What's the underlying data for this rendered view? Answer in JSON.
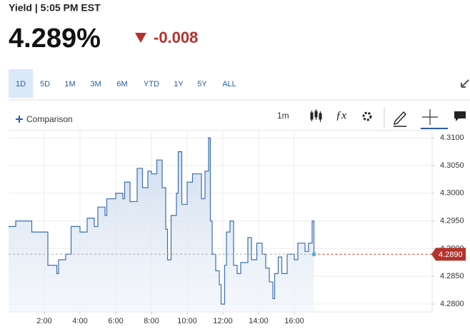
{
  "header": {
    "title": "Yield | 5:05 PM EST",
    "price": "4.289%",
    "change": "-0.008"
  },
  "ranges": [
    "1D",
    "5D",
    "1M",
    "3M",
    "6M",
    "YTD",
    "1Y",
    "5Y",
    "ALL"
  ],
  "toolbar": {
    "comparison": "Comparison",
    "interval": "1m"
  },
  "chart_data": {
    "type": "line",
    "x": [
      0,
      0.4,
      1.2,
      1.3,
      2.0,
      2.2,
      2.6,
      2.7,
      2.8,
      3.2,
      3.5,
      4.0,
      4.4,
      4.8,
      5.0,
      5.4,
      5.5,
      6.0,
      6.4,
      6.5,
      6.8,
      7.2,
      7.5,
      7.8,
      8.0,
      8.3,
      8.6,
      8.8,
      8.9,
      9.1,
      9.4,
      9.5,
      9.7,
      10.0,
      10.3,
      10.8,
      11.0,
      11.2,
      11.3,
      11.4,
      11.6,
      11.8,
      11.9,
      12.1,
      12.2,
      12.4,
      12.6,
      12.8,
      13.0,
      13.4,
      13.6,
      13.9,
      14.2,
      14.4,
      14.6,
      14.8,
      14.9,
      15.1,
      15.3,
      15.6,
      16.0,
      16.2,
      16.6,
      16.8,
      17.0,
      17.1
    ],
    "series": [
      {
        "color": "#3d6fb0",
        "values": [
          4.294,
          4.295,
          4.295,
          4.293,
          4.293,
          4.287,
          4.287,
          4.2855,
          4.288,
          4.289,
          4.294,
          4.293,
          4.2955,
          4.294,
          4.2975,
          4.296,
          4.299,
          4.3,
          4.299,
          4.302,
          4.2985,
          4.3045,
          4.301,
          4.304,
          4.3035,
          4.306,
          4.301,
          4.2935,
          4.288,
          4.296,
          4.3,
          4.3075,
          4.298,
          4.302,
          4.3035,
          4.299,
          4.304,
          4.31,
          4.295,
          4.289,
          4.286,
          4.2835,
          4.28,
          4.287,
          4.293,
          4.295,
          4.287,
          4.2855,
          4.2875,
          4.292,
          4.288,
          4.291,
          4.289,
          4.2865,
          4.284,
          4.281,
          4.2855,
          4.2885,
          4.2855,
          4.289,
          4.288,
          4.291,
          4.2895,
          4.291,
          4.295,
          4.289
        ]
      }
    ],
    "xlim": [
      0,
      23.7
    ],
    "ylim": [
      4.2786,
      4.3113
    ],
    "xticks": [
      {
        "value": 2,
        "label": "2:00"
      },
      {
        "value": 4,
        "label": "4:00"
      },
      {
        "value": 6,
        "label": "6:00"
      },
      {
        "value": 8,
        "label": "8:00"
      },
      {
        "value": 10,
        "label": "10:00"
      },
      {
        "value": 12,
        "label": "12:00"
      },
      {
        "value": 14,
        "label": "14:00"
      },
      {
        "value": 16,
        "label": "16:00"
      }
    ],
    "yticks": [
      {
        "value": 4.28,
        "label": "4.2800"
      },
      {
        "value": 4.285,
        "label": "4.2850"
      },
      {
        "value": 4.29,
        "label": "4.2900"
      },
      {
        "value": 4.295,
        "label": "4.2950"
      },
      {
        "value": 4.3,
        "label": "4.3000"
      },
      {
        "value": 4.305,
        "label": "4.3050"
      },
      {
        "value": 4.31,
        "label": "4.3100"
      }
    ],
    "grid": true,
    "last_value": {
      "value": 4.289,
      "label": "4.2890"
    }
  }
}
